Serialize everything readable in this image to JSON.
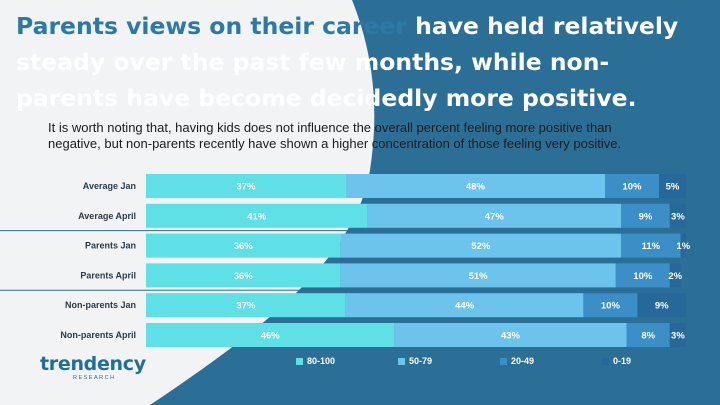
{
  "header": {
    "title_part1": "Parents views on their career ",
    "title_part2": "have held relatively steady over the past few mont",
    "title_part3": "hs, while non-parents have become decidedly more ",
    "title_part4": "positive.",
    "subtitle": "It is worth noting that, having kids does not influence the overall percent feeling more positive than negative, but non-parents recently have shown a higher concentration of those feeling very positive."
  },
  "logo": {
    "main": "trendency",
    "sub": "RESEARCH"
  },
  "colors": {
    "background_light": "#f1f3f4",
    "background_blue": "#2b6f96",
    "title": "#2c79a6",
    "band_80_100": "#5fdfe6",
    "band_50_79": "#6cc3ec",
    "band_20_49": "#3c8fc6",
    "band_0_19": "#27689b"
  },
  "chart_data": {
    "type": "bar",
    "orientation": "horizontal",
    "stacked": true,
    "categories": [
      "Average Jan",
      "Average April",
      "Parents Jan",
      "Parents April",
      "Non-parents Jan",
      "Non-parents April"
    ],
    "series": [
      {
        "name": "80-100",
        "values": [
          37,
          41,
          36,
          36,
          37,
          46
        ]
      },
      {
        "name": "50-79",
        "values": [
          48,
          47,
          52,
          51,
          44,
          43
        ]
      },
      {
        "name": "20-49",
        "values": [
          10,
          9,
          11,
          10,
          10,
          8
        ]
      },
      {
        "name": "0-19",
        "values": [
          5,
          3,
          1,
          2,
          9,
          3
        ]
      }
    ],
    "label_suffix": "%",
    "xlim": [
      0,
      100
    ],
    "group_separators_after": [
      1,
      3
    ],
    "legend_position": "bottom",
    "grid": false
  }
}
